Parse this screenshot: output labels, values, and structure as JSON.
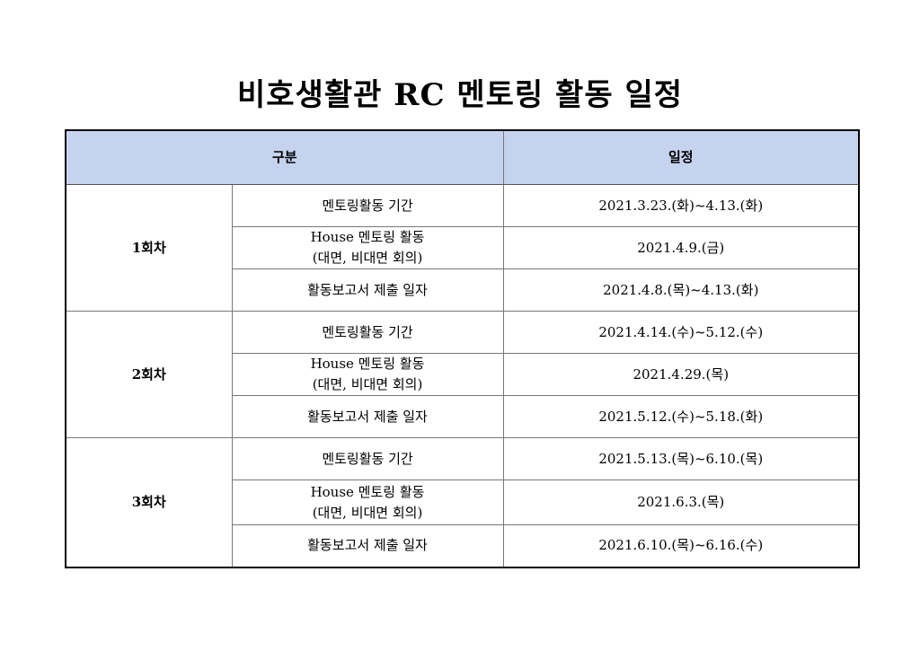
{
  "title": "비호생활관 RC 멘토링 활동 일정",
  "table": {
    "headers": [
      "구분",
      "일정"
    ],
    "groups": [
      {
        "round": "1회차",
        "rows": [
          {
            "item": "멘토링활동 기간",
            "item2": "",
            "date": "2021.3.23.(화)~4.13.(화)"
          },
          {
            "item": "House 멘토링 활동",
            "item2": "(대면, 비대면 회의)",
            "date": "2021.4.9.(금)"
          },
          {
            "item": "활동보고서 제출 일자",
            "item2": "",
            "date": "2021.4.8.(목)~4.13.(화)"
          }
        ]
      },
      {
        "round": "2회차",
        "rows": [
          {
            "item": "멘토링활동 기간",
            "item2": "",
            "date": "2021.4.14.(수)~5.12.(수)"
          },
          {
            "item": "House 멘토링 활동",
            "item2": "(대면, 비대면 회의)",
            "date": "2021.4.29.(목)"
          },
          {
            "item": "활동보고서 제출 일자",
            "item2": "",
            "date": "2021.5.12.(수)~5.18.(화)"
          }
        ]
      },
      {
        "round": "3회차",
        "rows": [
          {
            "item": "멘토링활동 기간",
            "item2": "",
            "date": "2021.5.13.(목)~6.10.(목)"
          },
          {
            "item": "House 멘토링 활동",
            "item2": "(대면, 비대면 회의)",
            "date": "2021.6.3.(목)"
          },
          {
            "item": "활동보고서 제출 일자",
            "item2": "",
            "date": "2021.6.10.(목)~6.16.(수)"
          }
        ]
      }
    ]
  },
  "colors": {
    "header_bg": "#c5d3ef"
  }
}
